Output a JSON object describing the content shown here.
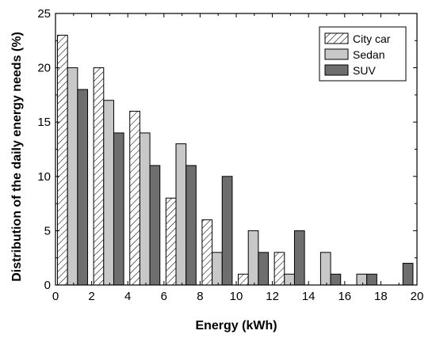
{
  "chart_data": {
    "type": "bar",
    "xlabel": "Energy (kWh)",
    "ylabel": "Distribution of the daily energy needs (%)",
    "xlim": [
      0,
      20
    ],
    "ylim": [
      0,
      25
    ],
    "xticks": [
      0,
      2,
      4,
      6,
      8,
      10,
      12,
      14,
      16,
      18,
      20
    ],
    "yticks": [
      0,
      5,
      10,
      15,
      20,
      25
    ],
    "bin_width": 2,
    "categories": [
      "0-2",
      "2-4",
      "4-6",
      "6-8",
      "8-10",
      "10-12",
      "12-14",
      "14-16",
      "16-18",
      "18-20"
    ],
    "series": [
      {
        "name": "City car",
        "values": [
          23,
          20,
          16,
          8,
          6,
          1,
          3,
          0,
          0,
          0
        ]
      },
      {
        "name": "Sedan",
        "values": [
          20,
          17,
          14,
          13,
          3,
          5,
          1,
          3,
          1,
          0
        ]
      },
      {
        "name": "SUV",
        "values": [
          18,
          14,
          11,
          11,
          10,
          3,
          5,
          1,
          1,
          2
        ]
      }
    ],
    "legend_position": "top-right",
    "grid": false
  },
  "colors": {
    "city_car_fill": "hatched",
    "sedan": "#c8c8c8",
    "suv": "#6e6e6e",
    "axis": "#000000"
  }
}
